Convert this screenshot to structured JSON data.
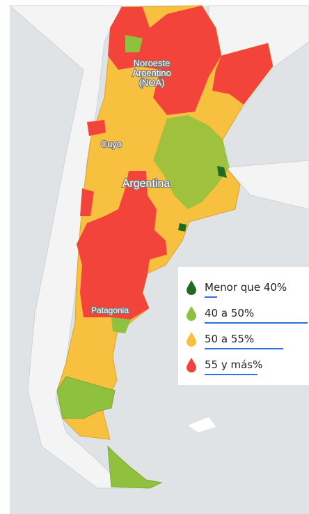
{
  "map": {
    "labels": [
      {
        "lines": [
          "Noroeste",
          "Argentino",
          "(NOA)"
        ]
      },
      {
        "lines": [
          "Cuyo"
        ]
      },
      {
        "lines": [
          "Argentina"
        ]
      },
      {
        "lines": [
          "Patagonia"
        ]
      }
    ]
  },
  "legend": {
    "items": [
      {
        "label": "Menor que 40%",
        "color": "#1f6b24"
      },
      {
        "label": "40 a 50%",
        "color": "#8fc13e"
      },
      {
        "label": "50 a 55%",
        "color": "#f8c03f"
      },
      {
        "label": "55 y más%",
        "color": "#f2443b"
      }
    ]
  }
}
